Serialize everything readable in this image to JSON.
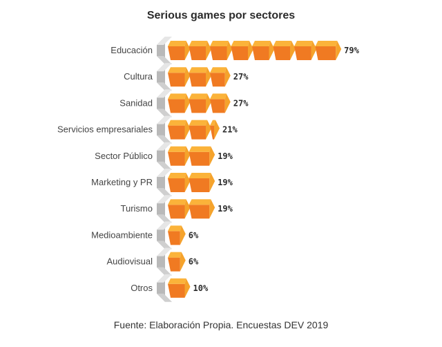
{
  "chart_data": {
    "type": "bar",
    "title": "Serious games por sectores",
    "xlabel": "",
    "ylabel": "",
    "categories": [
      "Educación",
      "Cultura",
      "Sanidad",
      "Servicios empresariales",
      "Sector Público",
      "Marketing y PR",
      "Turismo",
      "Medioambiente",
      "Audiovisual",
      "Otros"
    ],
    "values": [
      79,
      27,
      27,
      21,
      19,
      19,
      19,
      6,
      6,
      10
    ],
    "value_labels": [
      "79%",
      "27%",
      "27%",
      "21%",
      "19%",
      "19%",
      "19%",
      "6%",
      "6%",
      "10%"
    ],
    "unit": "%",
    "orientation": "horizontal",
    "grid": false,
    "legend": "none",
    "source": "Fuente: Elaboración Propia. Encuestas DEV 2019"
  },
  "colors": {
    "cube_top": "#fbb33a",
    "cube_front": "#f07a22",
    "cube_side": "#f5a32c",
    "spine_light": "#e6e6e6",
    "spine_dark": "#b9b9b9"
  }
}
